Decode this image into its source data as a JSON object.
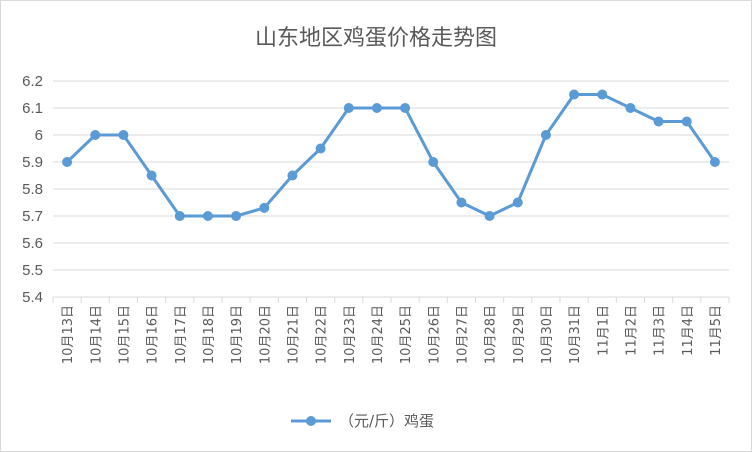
{
  "chart_data": {
    "type": "line",
    "title": "山东地区鸡蛋价格走势图",
    "xlabel": "",
    "ylabel": "",
    "ylim": [
      5.4,
      6.2
    ],
    "yticks": [
      "5.4",
      "5.5",
      "5.6",
      "5.7",
      "5.8",
      "5.9",
      "6",
      "6.1",
      "6.2"
    ],
    "grid": true,
    "legend_position": "bottom",
    "categories": [
      "10月13日",
      "10月14日",
      "10月15日",
      "10月16日",
      "10月17日",
      "10月18日",
      "10月19日",
      "10月20日",
      "10月21日",
      "10月22日",
      "10月23日",
      "10月24日",
      "10月25日",
      "10月26日",
      "10月27日",
      "10月28日",
      "10月29日",
      "10月30日",
      "10月31日",
      "11月1日",
      "11月2日",
      "11月3日",
      "11月4日",
      "11月5日"
    ],
    "series": [
      {
        "name": "（元/斤）鸡蛋",
        "color": "#5b9bd5",
        "values": [
          5.9,
          6.0,
          6.0,
          5.85,
          5.7,
          5.7,
          5.7,
          5.73,
          5.85,
          5.95,
          6.1,
          6.1,
          6.1,
          5.9,
          5.75,
          5.7,
          5.75,
          6.0,
          6.15,
          6.15,
          6.1,
          6.05,
          6.05,
          5.9
        ]
      }
    ]
  }
}
